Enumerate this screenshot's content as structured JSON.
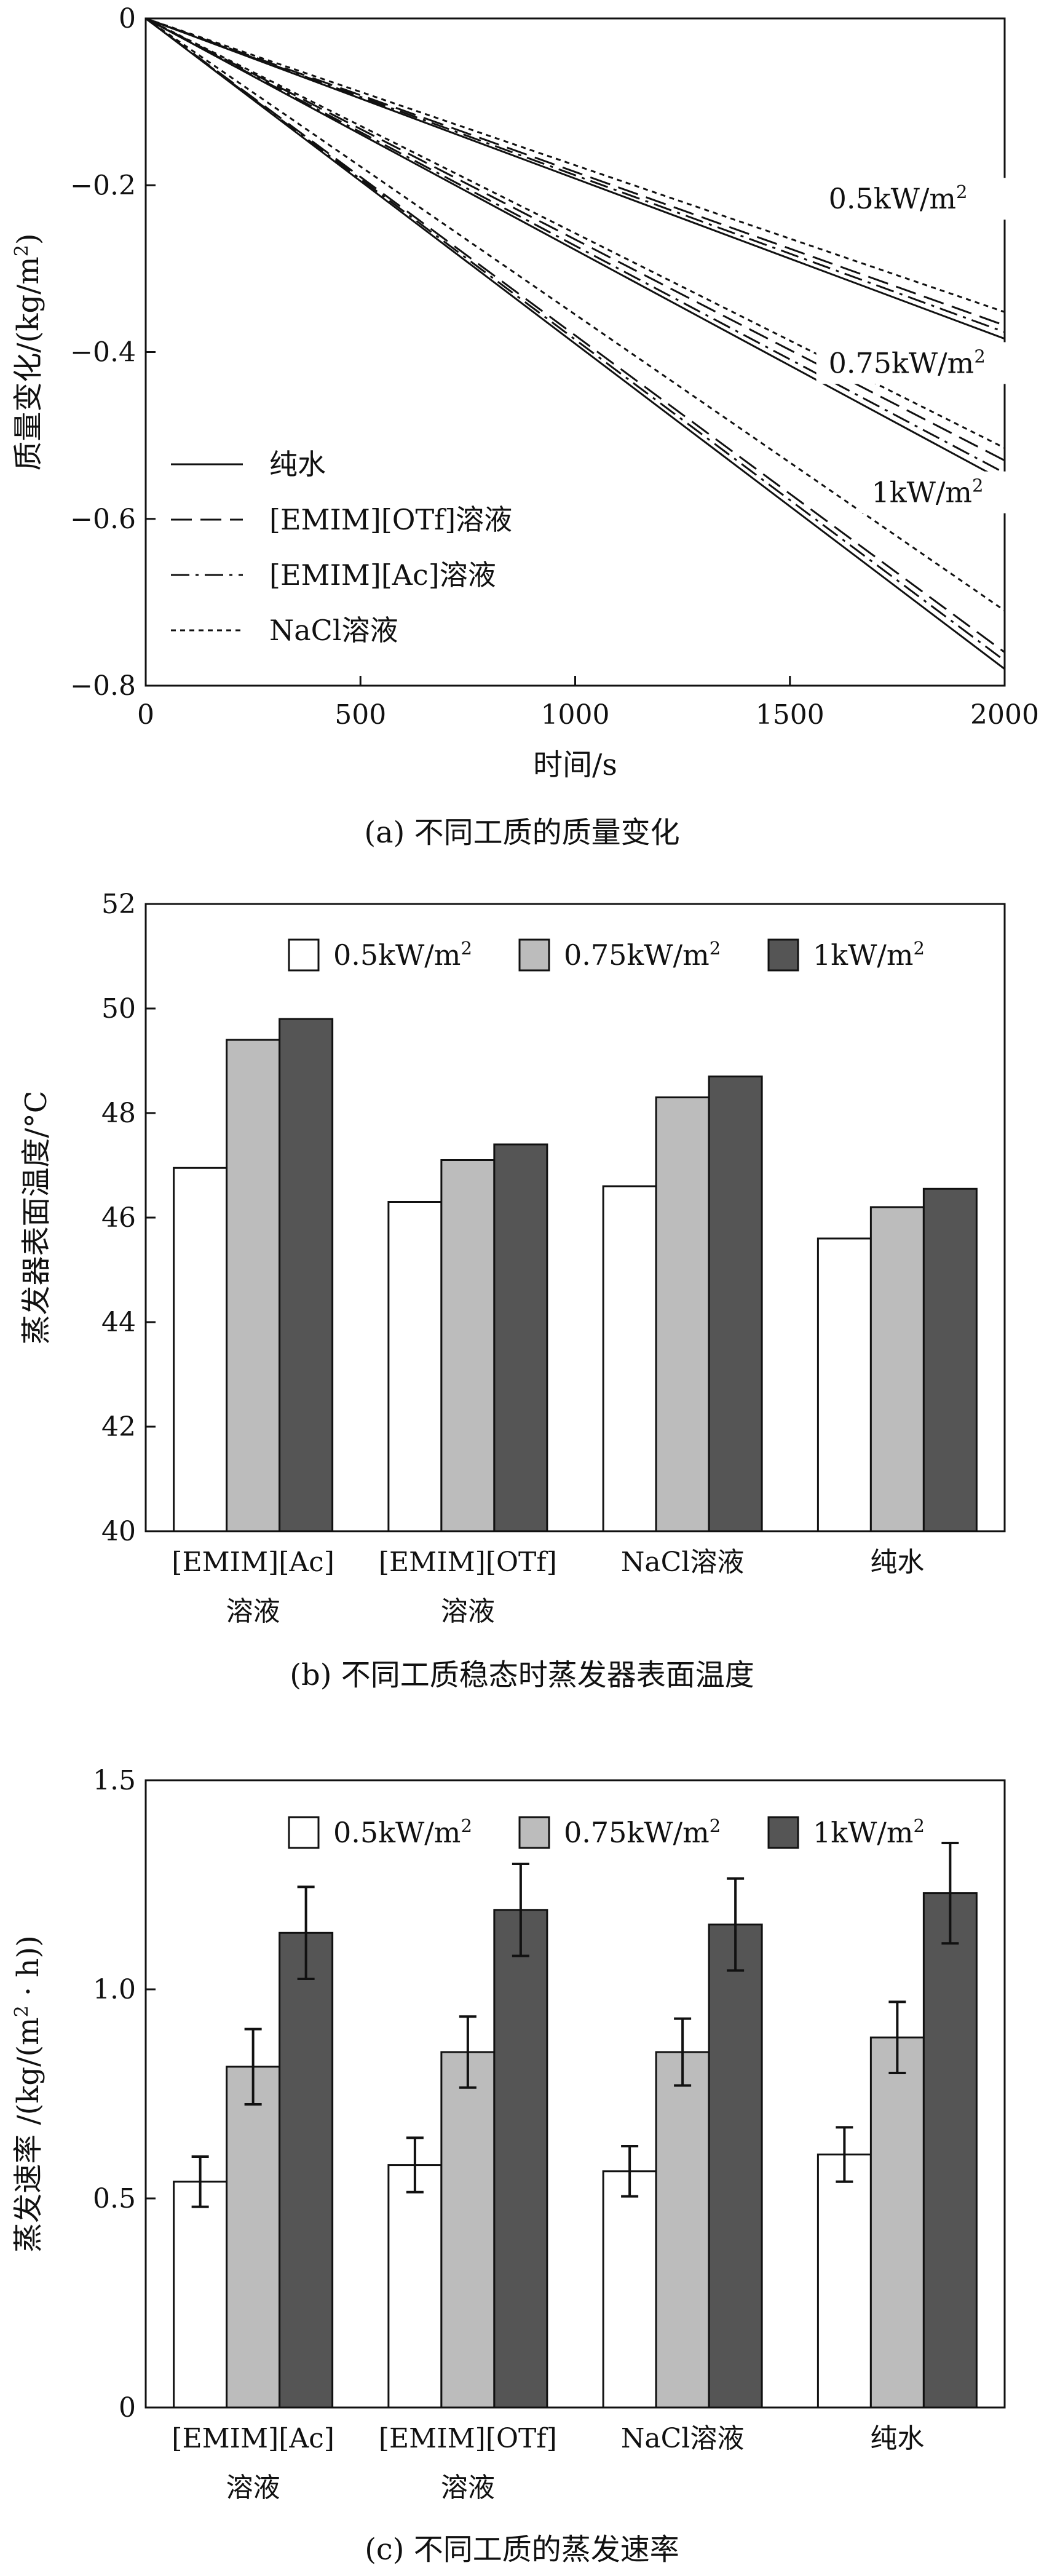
{
  "chart_data": [
    {
      "type": "line",
      "caption": "(a) 不同工质的质量变化",
      "xlabel": "时间/s",
      "ylabel_main": "质量变化/(kg/m",
      "ylabel_sup": "2",
      "ylabel_end": ")",
      "xlim": [
        0,
        2000
      ],
      "ylim": [
        -0.8,
        0
      ],
      "xticks": [
        0,
        500,
        1000,
        1500,
        2000
      ],
      "xtick_labels": [
        "0",
        "500",
        "1000",
        "1500",
        "2000"
      ],
      "yticks": [
        0,
        -0.2,
        -0.4,
        -0.6,
        -0.8
      ],
      "ytick_labels": [
        "0",
        "−0.2",
        "−0.4",
        "−0.6",
        "−0.8"
      ],
      "legend_position": "bottom-left",
      "legend": [
        {
          "label": "纯水",
          "style": "solid"
        },
        {
          "label": "[EMIM][OTf]溶液",
          "style": "dashed"
        },
        {
          "label": "[EMIM][Ac]溶液",
          "style": "dashdot"
        },
        {
          "label": "NaCl溶液",
          "style": "dotted"
        }
      ],
      "groups": [
        {
          "label_main": "0.5kW/m",
          "label_sup": "2",
          "label_at": [
            1590,
            -0.228
          ],
          "series": [
            {
              "style": "solid",
              "x": [
                0,
                2000
              ],
              "y": [
                0,
                -0.384
              ]
            },
            {
              "style": "dashed",
              "x": [
                0,
                2000
              ],
              "y": [
                0,
                -0.368
              ]
            },
            {
              "style": "dashdot",
              "x": [
                0,
                2000
              ],
              "y": [
                0,
                -0.376
              ]
            },
            {
              "style": "dotted",
              "x": [
                0,
                2000
              ],
              "y": [
                0,
                -0.352
              ]
            }
          ]
        },
        {
          "label_main": "0.75kW/m",
          "label_sup": "2",
          "label_at": [
            1590,
            -0.425
          ],
          "series": [
            {
              "style": "solid",
              "x": [
                0,
                2000
              ],
              "y": [
                0,
                -0.555
              ]
            },
            {
              "style": "dashed",
              "x": [
                0,
                2000
              ],
              "y": [
                0,
                -0.53
              ]
            },
            {
              "style": "dashdot",
              "x": [
                0,
                2000
              ],
              "y": [
                0,
                -0.545
              ]
            },
            {
              "style": "dotted",
              "x": [
                0,
                2000
              ],
              "y": [
                0,
                -0.515
              ]
            }
          ]
        },
        {
          "label_main": "1kW/m",
          "label_sup": "2",
          "label_at": [
            1690,
            -0.58
          ],
          "series": [
            {
              "style": "solid",
              "x": [
                0,
                2000
              ],
              "y": [
                0,
                -0.78
              ]
            },
            {
              "style": "dashed",
              "x": [
                0,
                2000
              ],
              "y": [
                0,
                -0.76
              ]
            },
            {
              "style": "dashdot",
              "x": [
                0,
                2000
              ],
              "y": [
                0,
                -0.77
              ]
            },
            {
              "style": "dotted",
              "x": [
                0,
                2000
              ],
              "y": [
                0,
                -0.71
              ]
            }
          ]
        }
      ]
    },
    {
      "type": "bar",
      "caption": "(b) 不同工质稳态时蒸发器表面温度",
      "ylabel": "蒸发器表面温度/°C",
      "ylim": [
        40,
        52
      ],
      "yticks": [
        40,
        42,
        44,
        46,
        48,
        50,
        52
      ],
      "ytick_labels": [
        "40",
        "42",
        "44",
        "46",
        "48",
        "50",
        "52"
      ],
      "categories": [
        [
          "[EMIM][Ac]",
          "溶液"
        ],
        [
          "[EMIM][OTf]",
          "溶液"
        ],
        [
          "NaCl溶液"
        ],
        [
          "纯水"
        ]
      ],
      "legend_position": "top",
      "series": [
        {
          "name_main": "0.5kW/m",
          "name_sup": "2",
          "color": "#ffffff",
          "values": [
            46.95,
            46.3,
            46.6,
            45.6
          ]
        },
        {
          "name_main": "0.75kW/m",
          "name_sup": "2",
          "color": "#bcbcbc",
          "values": [
            49.4,
            47.1,
            48.3,
            46.2
          ]
        },
        {
          "name_main": "1kW/m",
          "name_sup": "2",
          "color": "#555555",
          "values": [
            49.8,
            47.4,
            48.7,
            46.55
          ]
        }
      ]
    },
    {
      "type": "bar",
      "caption": "(c) 不同工质的蒸发速率",
      "ylabel_main": "蒸发速率 /(kg/(m",
      "ylabel_sup": "2",
      "ylabel_end": " · h))",
      "ylim": [
        0,
        1.5
      ],
      "yticks": [
        0,
        0.5,
        1.0,
        1.5
      ],
      "ytick_labels": [
        "0",
        "0.5",
        "1.0",
        "1.5"
      ],
      "categories": [
        [
          "[EMIM][Ac]",
          "溶液"
        ],
        [
          "[EMIM][OTf]",
          "溶液"
        ],
        [
          "NaCl溶液"
        ],
        [
          "纯水"
        ]
      ],
      "legend_position": "top",
      "series": [
        {
          "name_main": "0.5kW/m",
          "name_sup": "2",
          "color": "#ffffff",
          "values": [
            0.54,
            0.58,
            0.565,
            0.605
          ],
          "errors": [
            0.06,
            0.065,
            0.06,
            0.065
          ]
        },
        {
          "name_main": "0.75kW/m",
          "name_sup": "2",
          "color": "#bcbcbc",
          "values": [
            0.815,
            0.85,
            0.85,
            0.885
          ],
          "errors": [
            0.09,
            0.085,
            0.08,
            0.085
          ]
        },
        {
          "name_main": "1kW/m",
          "name_sup": "2",
          "color": "#555555",
          "values": [
            1.135,
            1.19,
            1.155,
            1.23
          ],
          "errors": [
            0.11,
            0.11,
            0.11,
            0.12
          ]
        }
      ]
    }
  ]
}
